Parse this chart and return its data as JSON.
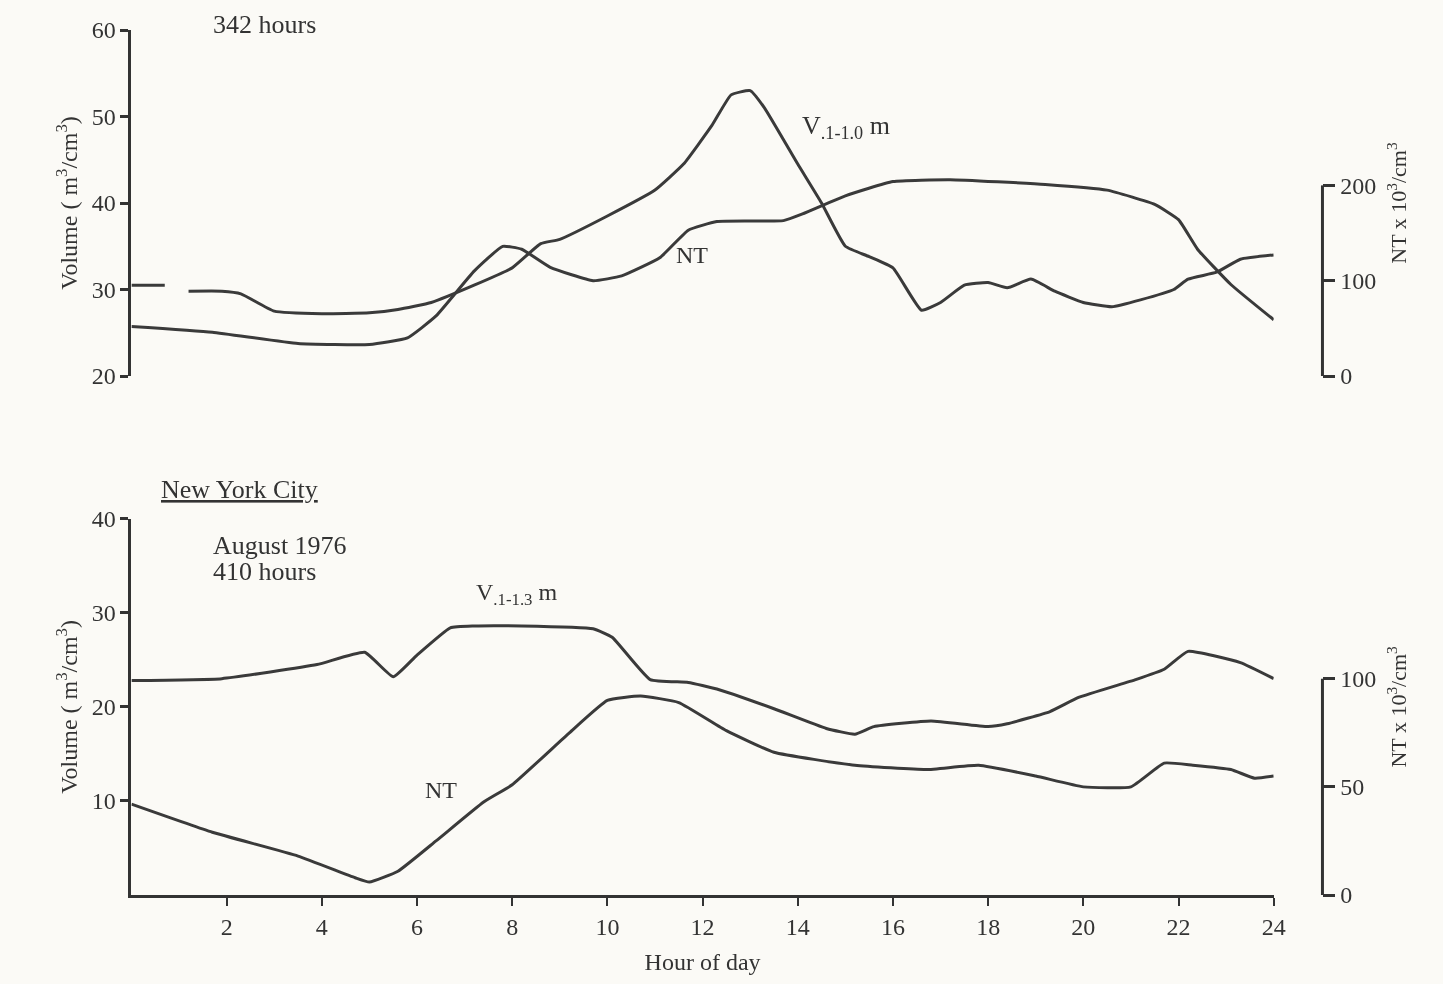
{
  "chart_data": [
    {
      "type": "line",
      "xlim": [
        0,
        24
      ],
      "ylim": [
        20,
        60
      ],
      "yticks": [
        20,
        30,
        40,
        50,
        60
      ],
      "y2lim": [
        0,
        363
      ],
      "y2ticks": [
        0,
        100,
        200
      ],
      "ylabel": "Volume ( m$^{3}$/cm$^{3}$)",
      "y2label": "NT x 10$^{3}$/cm$^{3}$",
      "tick_labels": "y",
      "grid": false,
      "legend": false,
      "marker": "none",
      "line_style": "solid",
      "annotations": [
        "342 hours",
        "V$_{.1-1.0}$ m",
        "NT"
      ],
      "series": [
        {
          "color": "#3a3a3a",
          "x": [
            0,
            0.7,
            1.0,
            1.2,
            1.9,
            2.3,
            3.0,
            4.0,
            5.0,
            5.6,
            6.3,
            7.2,
            8.0,
            8.6,
            9.0,
            10.0,
            11.0,
            11.6,
            12.2,
            12.6,
            13.0,
            13.3,
            14.0,
            14.5,
            15.0,
            15.5,
            16.0,
            16.6,
            17.0,
            17.5,
            18.0,
            18.4,
            18.9,
            19.4,
            20.0,
            20.6,
            21.2,
            21.9,
            22.2,
            22.8,
            23.3,
            24.0
          ],
          "values": [
            30.5,
            30.5,
            null,
            29.8,
            29.8,
            29.5,
            27.5,
            27.2,
            27.3,
            27.7,
            28.5,
            30.5,
            32.5,
            35.3,
            35.8,
            38.5,
            41.5,
            44.5,
            49,
            52.5,
            53,
            51,
            44.5,
            40,
            35,
            33.8,
            32.5,
            27.6,
            28.5,
            30.5,
            30.8,
            30.2,
            31.2,
            29.8,
            28.5,
            28,
            28.8,
            30,
            31.2,
            32,
            33.5,
            34
          ]
        },
        {
          "color": "#3a3a3a",
          "axis": "y2",
          "x": [
            0,
            1.7,
            3.5,
            5.0,
            5.8,
            6.4,
            7.2,
            7.8,
            8.2,
            8.8,
            9.7,
            10.3,
            11.1,
            11.7,
            12.3,
            13.7,
            14.1,
            15.0,
            16.0,
            17.2,
            19.2,
            20.5,
            21.5,
            22.0,
            22.4,
            23.1,
            24.0
          ],
          "values": [
            52,
            46,
            34,
            33,
            40,
            63,
            110,
            136,
            133,
            114,
            100,
            105,
            124,
            153,
            162,
            163,
            170,
            189,
            204,
            206,
            201,
            195,
            180,
            164,
            133,
            96,
            59
          ]
        }
      ]
    },
    {
      "type": "line",
      "title": "New York City",
      "xlabel": "Hour of day",
      "xlim": [
        0,
        24
      ],
      "xticks": [
        2,
        4,
        6,
        8,
        10,
        12,
        14,
        16,
        18,
        20,
        22,
        24
      ],
      "ylim": [
        0,
        40
      ],
      "yticks": [
        10,
        20,
        30,
        40
      ],
      "y2lim": [
        0,
        174
      ],
      "y2ticks": [
        0,
        50,
        100
      ],
      "ylabel": "Volume ( m$^{3}$/cm$^{3}$)",
      "y2label": "NT x 10$^{3}$/cm$^{3}$",
      "grid": false,
      "legend": false,
      "marker": "none",
      "line_style": "solid",
      "annotations": [
        "August 1976",
        "410 hours",
        "V$_{.1-1.3}$ m",
        "NT"
      ],
      "series": [
        {
          "color": "#3a3a3a",
          "x": [
            0,
            1.9,
            3.9,
            4.9,
            5.5,
            6.0,
            6.7,
            7.2,
            8.2,
            9.7,
            10.1,
            10.9,
            11.7,
            12.3,
            13.5,
            14.6,
            15.2,
            15.6,
            16.8,
            18.0,
            18.4,
            19.3,
            19.9,
            21.1,
            21.7,
            22.2,
            23.3,
            24.0
          ],
          "values": [
            22.8,
            23,
            24.5,
            25.8,
            23.2,
            25.5,
            28.4,
            28.6,
            28.6,
            28.3,
            27.4,
            22.9,
            22.6,
            21.9,
            19.8,
            17.7,
            17.1,
            17.9,
            18.5,
            17.9,
            18.2,
            19.5,
            21,
            22.9,
            24,
            25.9,
            24.7,
            23
          ]
        },
        {
          "color": "#3a3a3a",
          "axis": "y2",
          "x": [
            0,
            1.7,
            3.5,
            4.7,
            5.0,
            5.6,
            6.4,
            7.4,
            8.0,
            9.2,
            10.0,
            10.7,
            11.5,
            12.5,
            13.5,
            15.2,
            16.7,
            17.8,
            19.0,
            20.0,
            21.0,
            21.7,
            22.3,
            23.1,
            23.6,
            24.0
          ],
          "values": [
            42,
            29,
            18,
            8,
            6,
            11,
            25,
            43,
            51,
            75,
            90,
            92,
            89,
            76,
            66,
            60,
            58,
            60,
            55,
            50,
            50,
            61,
            60,
            58,
            54,
            55
          ]
        }
      ]
    }
  ]
}
